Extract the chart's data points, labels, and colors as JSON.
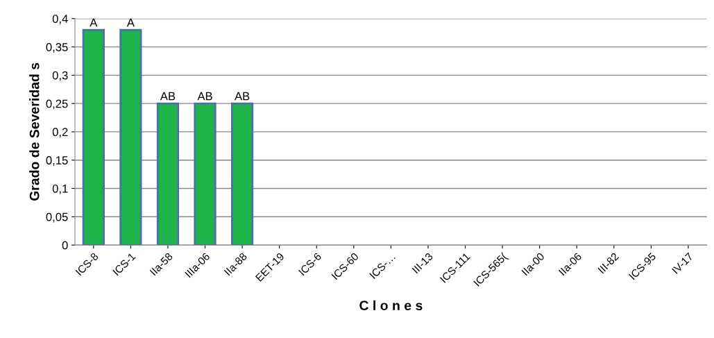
{
  "chart_data": {
    "type": "bar",
    "categories": [
      "ICS-8",
      "ICS-1",
      "IIa-58",
      "IIIa-06",
      "IIa-88",
      "EET-19",
      "ICS-6",
      "ICS-60",
      "ICS-…",
      "III-13",
      "ICS-111",
      "ICS-565(",
      "IIa-00",
      "IIa-06",
      "III-82",
      "ICS-95",
      "IV-17"
    ],
    "values": [
      0.38,
      0.38,
      0.25,
      0.25,
      0.25,
      0,
      0,
      0,
      0,
      0,
      0,
      0,
      0,
      0,
      0,
      0,
      0
    ],
    "value_labels": [
      "A",
      "A",
      "AB",
      "AB",
      "AB",
      null,
      null,
      null,
      null,
      null,
      null,
      null,
      null,
      null,
      null,
      null,
      null
    ],
    "color": "#1fb44a",
    "xlabel": "C l o n e s",
    "ylabel": "Grado de Severidad s",
    "ylim": [
      0,
      0.4
    ],
    "yticks": [
      {
        "value": 0,
        "label": "0"
      },
      {
        "value": 0.05,
        "label": "0,05"
      },
      {
        "value": 0.1,
        "label": "0,1"
      },
      {
        "value": 0.15,
        "label": "0,15"
      },
      {
        "value": 0.2,
        "label": "0,2"
      },
      {
        "value": 0.25,
        "label": "0,25"
      },
      {
        "value": 0.3,
        "label": "0,3"
      },
      {
        "value": 0.35,
        "label": "0,35"
      },
      {
        "value": 0.4,
        "label": "0,4"
      }
    ],
    "grid": "y"
  }
}
